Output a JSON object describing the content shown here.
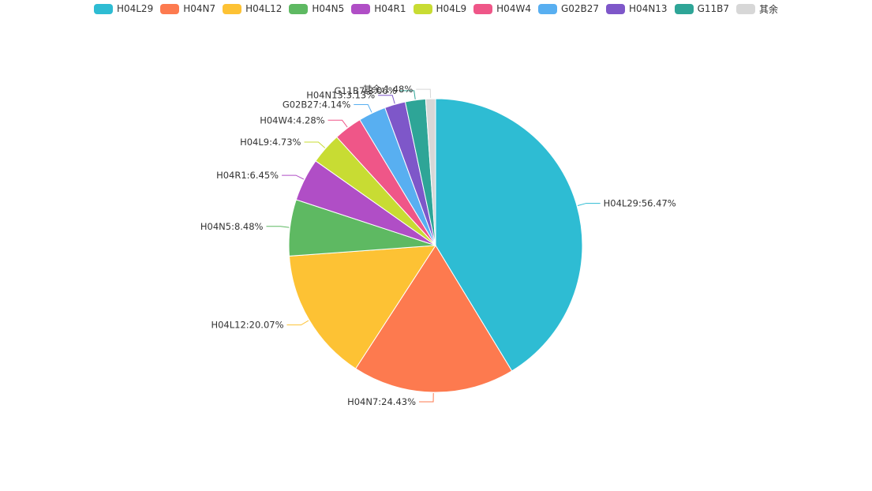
{
  "chart_data": {
    "type": "pie",
    "title": "",
    "legend_position": "top-center",
    "series": [
      {
        "name": "H04L29",
        "label": "H04L29:56.47%",
        "value": 56.47,
        "color": "#2ebcd3"
      },
      {
        "name": "H04N7",
        "label": "H04N7:24.43%",
        "value": 24.43,
        "color": "#fd7a4f"
      },
      {
        "name": "H04L12",
        "label": "H04L12:20.07%",
        "value": 20.07,
        "color": "#fdc234"
      },
      {
        "name": "H04N5",
        "label": "H04N5:8.48%",
        "value": 8.48,
        "color": "#5eb962"
      },
      {
        "name": "H04R1",
        "label": "H04R1:6.45%",
        "value": 6.45,
        "color": "#b04ec6"
      },
      {
        "name": "H04L9",
        "label": "H04L9:4.73%",
        "value": 4.73,
        "color": "#c8dc33"
      },
      {
        "name": "H04W4",
        "label": "H04W4:4.28%",
        "value": 4.28,
        "color": "#ef5688"
      },
      {
        "name": "G02B27",
        "label": "G02B27:4.14%",
        "value": 4.14,
        "color": "#58aff1"
      },
      {
        "name": "H04N13",
        "label": "H04N13:3.13%",
        "value": 3.13,
        "color": "#7e57c9"
      },
      {
        "name": "G11B7",
        "label": "G11B7:3.06%",
        "value": 3.06,
        "color": "#2ea597"
      },
      {
        "name": "其余",
        "label": "其余:1.48%",
        "value": 1.48,
        "color": "#d7d7d7"
      }
    ]
  }
}
